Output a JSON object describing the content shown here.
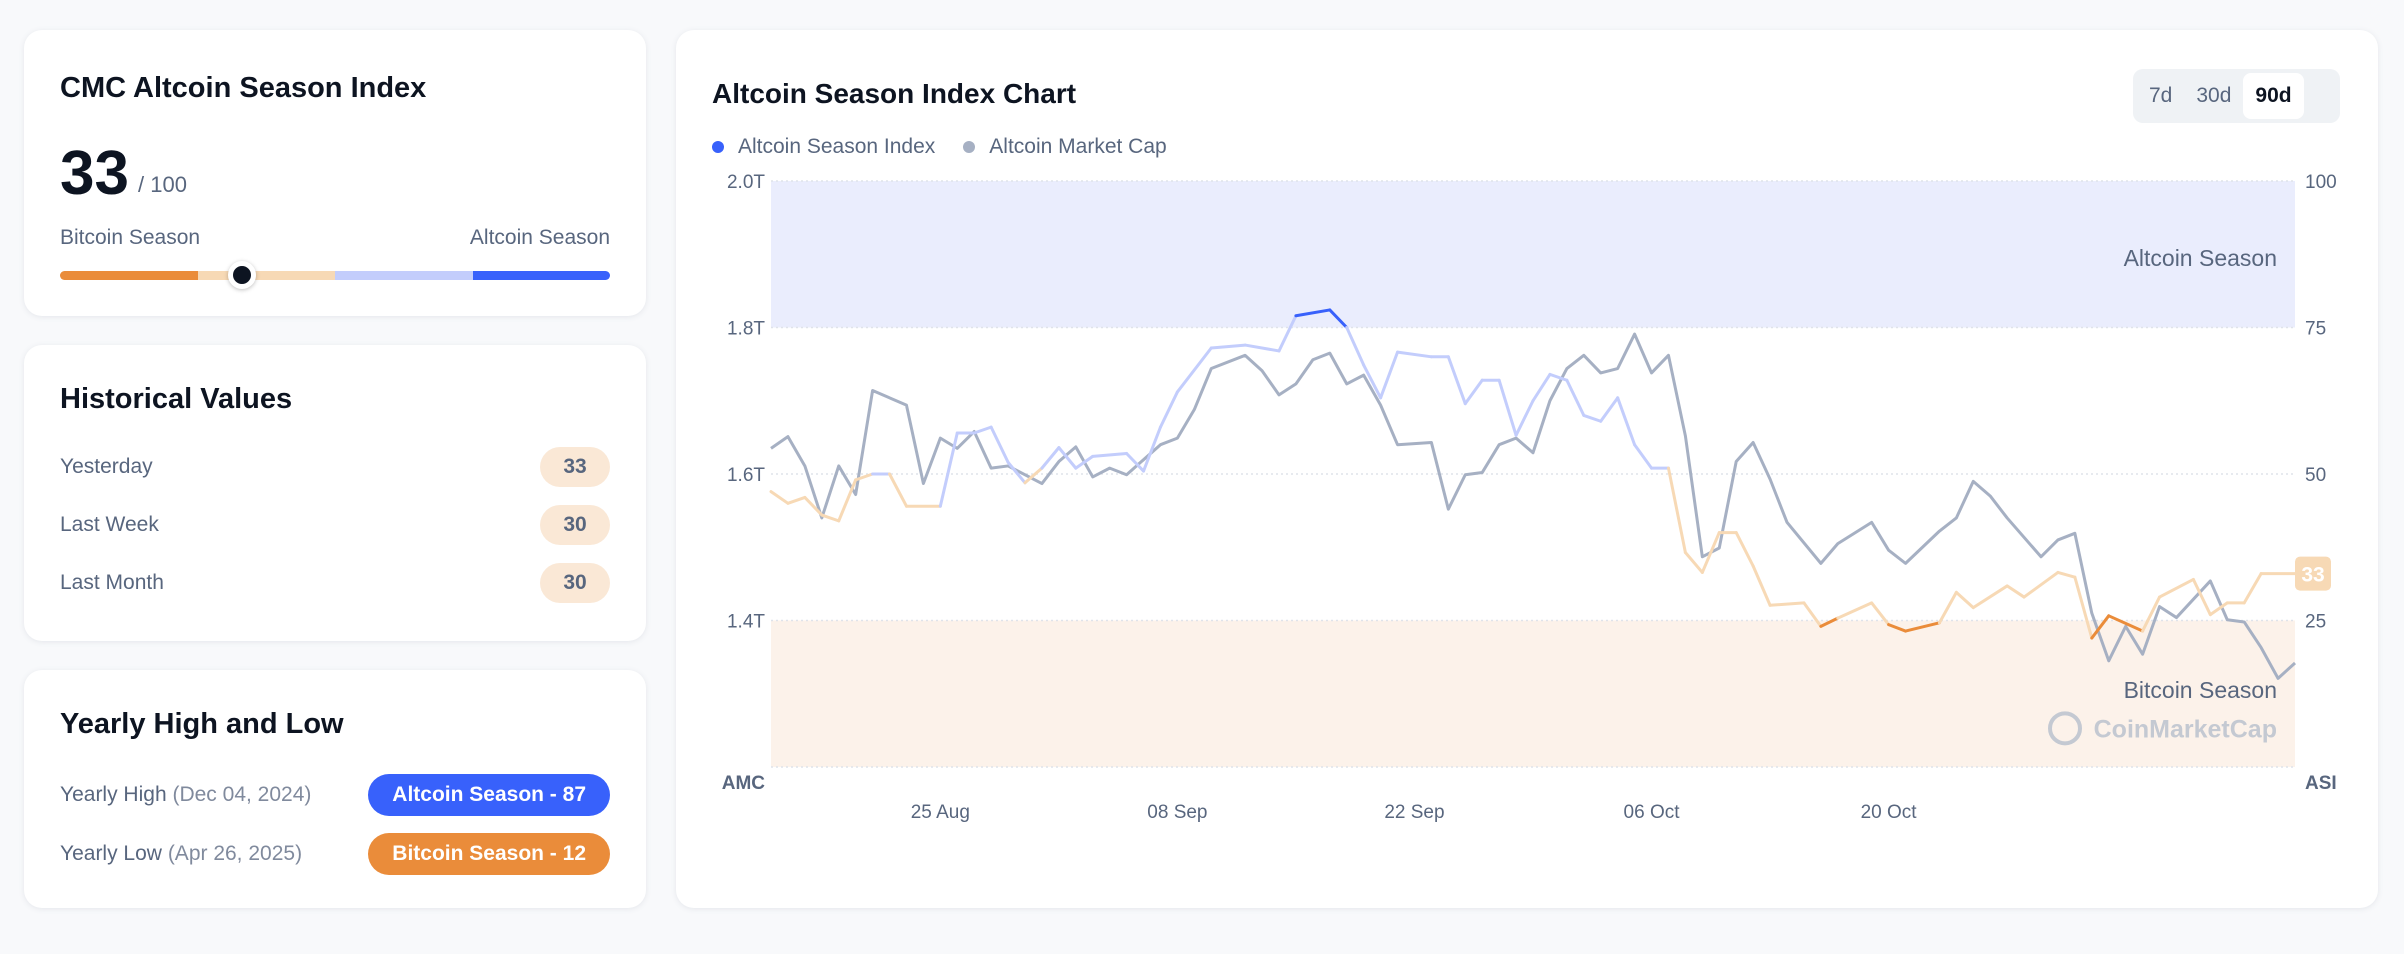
{
  "index_card": {
    "title": "CMC Altcoin Season Index",
    "value": "33",
    "max": "/ 100",
    "value_fraction": 0.33,
    "left_label": "Bitcoin Season",
    "right_label": "Altcoin Season"
  },
  "historical": {
    "title": "Historical Values",
    "rows": [
      {
        "label": "Yesterday",
        "value": "33"
      },
      {
        "label": "Last Week",
        "value": "30"
      },
      {
        "label": "Last Month",
        "value": "30"
      }
    ]
  },
  "yearly": {
    "title": "Yearly High and Low",
    "high": {
      "label": "Yearly High",
      "date": "(Dec 04, 2024)",
      "badge": "Altcoin Season - 87"
    },
    "low": {
      "label": "Yearly Low",
      "date": "(Apr 26, 2025)",
      "badge": "Bitcoin Season - 12"
    }
  },
  "chart_card": {
    "title": "Altcoin Season Index Chart",
    "ranges": [
      "7d",
      "30d",
      "90d"
    ],
    "selected_range": "90d"
  },
  "colors": {
    "altcoin": "#3861FB",
    "altcoin_light": "#c3cdfc",
    "bitcoin": "#EA8C3A",
    "bitcoin_light": "#f7d9b5",
    "market_cap": "#a6b0c3",
    "altcoin_band": "#eaedfd",
    "bitcoin_band": "#fcf2ea"
  },
  "chart_data": {
    "type": "line",
    "legend": [
      "Altcoin Season Index",
      "Altcoin Market Cap"
    ],
    "legend_placement": "top-left",
    "left_axis": {
      "label": "AMC",
      "ticks": [
        "2.0T",
        "1.8T",
        "1.6T",
        "1.4T"
      ],
      "range": [
        1.2,
        2.0
      ]
    },
    "right_axis": {
      "label": "ASI",
      "ticks": [
        "100",
        "75",
        "50",
        "25"
      ],
      "range": [
        0,
        100
      ]
    },
    "x_ticks": [
      {
        "date": "2025-08-25",
        "label": "25 Aug"
      },
      {
        "date": "2025-09-08",
        "label": "08 Sep"
      },
      {
        "date": "2025-09-22",
        "label": "22 Sep"
      },
      {
        "date": "2025-10-06",
        "label": "06 Oct"
      },
      {
        "date": "2025-10-20",
        "label": "20 Oct"
      }
    ],
    "x_range": [
      "2025-08-15",
      "2025-11-13"
    ],
    "bands": [
      {
        "label": "Altcoin Season",
        "from": 75,
        "to": 100
      },
      {
        "label": "Bitcoin Season",
        "from": 0,
        "to": 25
      }
    ],
    "current_value_label": "33",
    "watermark": "CoinMarketCap",
    "series": [
      {
        "name": "Altcoin Season Index",
        "axis": "right",
        "points": [
          [
            "2025-08-15",
            47
          ],
          [
            "2025-08-16",
            45
          ],
          [
            "2025-08-17",
            46
          ],
          [
            "2025-08-18",
            43
          ],
          [
            "2025-08-19",
            42
          ],
          [
            "2025-08-20",
            49
          ],
          [
            "2025-08-21",
            50
          ],
          [
            "2025-08-22",
            50
          ],
          [
            "2025-08-23",
            44.5
          ],
          [
            "2025-08-25",
            44.5
          ],
          [
            "2025-08-26",
            57
          ],
          [
            "2025-08-27",
            57
          ],
          [
            "2025-08-28",
            58
          ],
          [
            "2025-08-29",
            52
          ],
          [
            "2025-08-30",
            48.5
          ],
          [
            "2025-08-31",
            51
          ],
          [
            "2025-09-01",
            54.5
          ],
          [
            "2025-09-02",
            51
          ],
          [
            "2025-09-03",
            53
          ],
          [
            "2025-09-05",
            53.5
          ],
          [
            "2025-09-06",
            50.5
          ],
          [
            "2025-09-07",
            58
          ],
          [
            "2025-09-08",
            64
          ],
          [
            "2025-09-10",
            71.5
          ],
          [
            "2025-09-12",
            72
          ],
          [
            "2025-09-14",
            71
          ],
          [
            "2025-09-15",
            77
          ],
          [
            "2025-09-17",
            78
          ],
          [
            "2025-09-18",
            75
          ],
          [
            "2025-09-19",
            68.6
          ],
          [
            "2025-09-20",
            63
          ],
          [
            "2025-09-21",
            70.8
          ],
          [
            "2025-09-23",
            70
          ],
          [
            "2025-09-24",
            70
          ],
          [
            "2025-09-25",
            62
          ],
          [
            "2025-09-26",
            66
          ],
          [
            "2025-09-27",
            66
          ],
          [
            "2025-09-28",
            56.6
          ],
          [
            "2025-09-29",
            62.5
          ],
          [
            "2025-09-30",
            67
          ],
          [
            "2025-10-01",
            66
          ],
          [
            "2025-10-02",
            60
          ],
          [
            "2025-10-03",
            59
          ],
          [
            "2025-10-04",
            63
          ],
          [
            "2025-10-05",
            55
          ],
          [
            "2025-10-06",
            51
          ],
          [
            "2025-10-07",
            51
          ],
          [
            "2025-10-08",
            36.6
          ],
          [
            "2025-10-09",
            33.2
          ],
          [
            "2025-10-10",
            40
          ],
          [
            "2025-10-11",
            40
          ],
          [
            "2025-10-12",
            34.3
          ],
          [
            "2025-10-13",
            27.6
          ],
          [
            "2025-10-15",
            28
          ],
          [
            "2025-10-16",
            24
          ],
          [
            "2025-10-17",
            25.4
          ],
          [
            "2025-10-19",
            28
          ],
          [
            "2025-10-20",
            24.3
          ],
          [
            "2025-10-21",
            23.2
          ],
          [
            "2025-10-23",
            24.6
          ],
          [
            "2025-10-24",
            29.8
          ],
          [
            "2025-10-25",
            27.2
          ],
          [
            "2025-10-27",
            30.9
          ],
          [
            "2025-10-28",
            29
          ],
          [
            "2025-10-30",
            33.2
          ],
          [
            "2025-10-31",
            32.4
          ],
          [
            "2025-11-01",
            22
          ],
          [
            "2025-11-02",
            25.8
          ],
          [
            "2025-11-04",
            23.2
          ],
          [
            "2025-11-05",
            29
          ],
          [
            "2025-11-07",
            32
          ],
          [
            "2025-11-08",
            26
          ],
          [
            "2025-11-09",
            28
          ],
          [
            "2025-11-10",
            28
          ],
          [
            "2025-11-11",
            33
          ],
          [
            "2025-11-13",
            33
          ]
        ]
      },
      {
        "name": "Altcoin Market Cap",
        "axis": "left",
        "unit": "T",
        "points": [
          [
            "2025-08-15",
            1.635
          ],
          [
            "2025-08-16",
            1.651
          ],
          [
            "2025-08-17",
            1.611
          ],
          [
            "2025-08-18",
            1.54
          ],
          [
            "2025-08-19",
            1.611
          ],
          [
            "2025-08-20",
            1.572
          ],
          [
            "2025-08-21",
            1.714
          ],
          [
            "2025-08-23",
            1.694
          ],
          [
            "2025-08-24",
            1.587
          ],
          [
            "2025-08-25",
            1.649
          ],
          [
            "2025-08-26",
            1.635
          ],
          [
            "2025-08-27",
            1.658
          ],
          [
            "2025-08-28",
            1.608
          ],
          [
            "2025-08-29",
            1.611
          ],
          [
            "2025-08-31",
            1.587
          ],
          [
            "2025-09-01",
            1.617
          ],
          [
            "2025-09-02",
            1.637
          ],
          [
            "2025-09-03",
            1.596
          ],
          [
            "2025-09-04",
            1.608
          ],
          [
            "2025-09-05",
            1.599
          ],
          [
            "2025-09-07",
            1.64
          ],
          [
            "2025-09-08",
            1.649
          ],
          [
            "2025-09-09",
            1.688
          ],
          [
            "2025-09-10",
            1.744
          ],
          [
            "2025-09-12",
            1.762
          ],
          [
            "2025-09-13",
            1.741
          ],
          [
            "2025-09-14",
            1.708
          ],
          [
            "2025-09-15",
            1.723
          ],
          [
            "2025-09-16",
            1.756
          ],
          [
            "2025-09-17",
            1.765
          ],
          [
            "2025-09-18",
            1.723
          ],
          [
            "2025-09-19",
            1.735
          ],
          [
            "2025-09-20",
            1.694
          ],
          [
            "2025-09-21",
            1.64
          ],
          [
            "2025-09-23",
            1.643
          ],
          [
            "2025-09-24",
            1.552
          ],
          [
            "2025-09-25",
            1.599
          ],
          [
            "2025-09-26",
            1.602
          ],
          [
            "2025-09-27",
            1.64
          ],
          [
            "2025-09-28",
            1.649
          ],
          [
            "2025-09-29",
            1.629
          ],
          [
            "2025-09-30",
            1.7
          ],
          [
            "2025-10-01",
            1.744
          ],
          [
            "2025-10-02",
            1.762
          ],
          [
            "2025-10-03",
            1.738
          ],
          [
            "2025-10-04",
            1.744
          ],
          [
            "2025-10-05",
            1.791
          ],
          [
            "2025-10-06",
            1.738
          ],
          [
            "2025-10-07",
            1.762
          ],
          [
            "2025-10-08",
            1.652
          ],
          [
            "2025-10-09",
            1.487
          ],
          [
            "2025-10-10",
            1.499
          ],
          [
            "2025-10-11",
            1.617
          ],
          [
            "2025-10-12",
            1.643
          ],
          [
            "2025-10-13",
            1.593
          ],
          [
            "2025-10-14",
            1.534
          ],
          [
            "2025-10-16",
            1.478
          ],
          [
            "2025-10-17",
            1.505
          ],
          [
            "2025-10-19",
            1.534
          ],
          [
            "2025-10-20",
            1.496
          ],
          [
            "2025-10-21",
            1.478
          ],
          [
            "2025-10-23",
            1.522
          ],
          [
            "2025-10-24",
            1.54
          ],
          [
            "2025-10-25",
            1.59
          ],
          [
            "2025-10-26",
            1.57
          ],
          [
            "2025-10-27",
            1.54
          ],
          [
            "2025-10-29",
            1.487
          ],
          [
            "2025-10-30",
            1.51
          ],
          [
            "2025-10-31",
            1.519
          ],
          [
            "2025-11-01",
            1.41
          ],
          [
            "2025-11-02",
            1.345
          ],
          [
            "2025-11-03",
            1.392
          ],
          [
            "2025-11-04",
            1.354
          ],
          [
            "2025-11-05",
            1.419
          ],
          [
            "2025-11-06",
            1.404
          ],
          [
            "2025-11-08",
            1.454
          ],
          [
            "2025-11-09",
            1.401
          ],
          [
            "2025-11-10",
            1.398
          ],
          [
            "2025-11-11",
            1.363
          ],
          [
            "2025-11-12",
            1.321
          ],
          [
            "2025-11-13",
            1.342
          ]
        ]
      }
    ]
  }
}
